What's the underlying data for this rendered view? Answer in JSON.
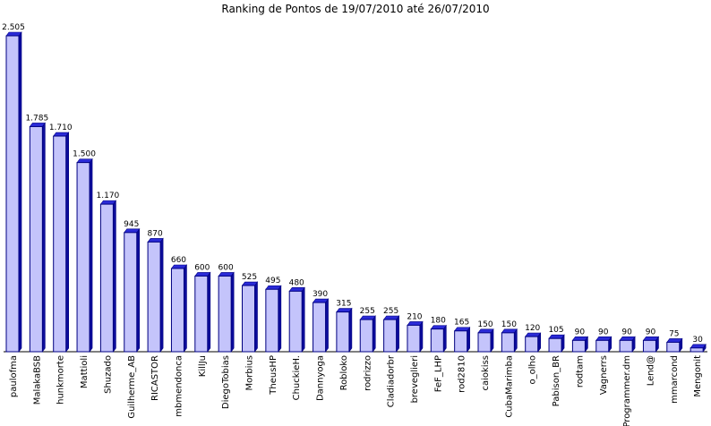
{
  "chart_data": {
    "type": "bar",
    "title": "Ranking de Pontos de 19/07/2010 até 26/07/2010",
    "categories": [
      "paulofma",
      "MalakaBSB",
      "hunkmorte",
      "Mattioli",
      "Shuzado",
      "Guilherme_AB",
      "RICASTOR",
      "mbmendonca",
      "KillJu",
      "DiegoTobias",
      "Morbius",
      "TheusHP",
      "ChuckieH.",
      "Dannyoga",
      "Robloko",
      "rodrizzo",
      "Cladiadorbr",
      "breveglieri",
      "FeF_LHP",
      "rod2810",
      "caiokiss",
      "CubaMarimba",
      "o_olho",
      "Pabison_BR",
      "rodtam",
      "Vagnerrs",
      "Programmer.dm",
      "Lend@",
      "mmarcond",
      "Mengonit"
    ],
    "values": [
      2505,
      1785,
      1710,
      1500,
      1170,
      945,
      870,
      660,
      600,
      600,
      525,
      495,
      480,
      390,
      315,
      255,
      255,
      210,
      180,
      165,
      150,
      150,
      120,
      105,
      90,
      90,
      90,
      90,
      75,
      30
    ],
    "value_labels": [
      "2.505",
      "1.785",
      "1.710",
      "1.500",
      "1.170",
      "945",
      "870",
      "660",
      "600",
      "600",
      "525",
      "495",
      "480",
      "390",
      "315",
      "255",
      "255",
      "210",
      "180",
      "165",
      "150",
      "150",
      "120",
      "105",
      "90",
      "90",
      "90",
      "90",
      "75",
      "30"
    ],
    "ylim": [
      0,
      2505
    ],
    "xlabel": "",
    "ylabel": "",
    "grid": false,
    "legend": "none",
    "colors": {
      "bar_front": "#c4c4fb",
      "bar_side": "#0c0c9c",
      "bar_top": "#2b2bd8",
      "bar_outline": "#000080",
      "axis": "#000000"
    }
  }
}
